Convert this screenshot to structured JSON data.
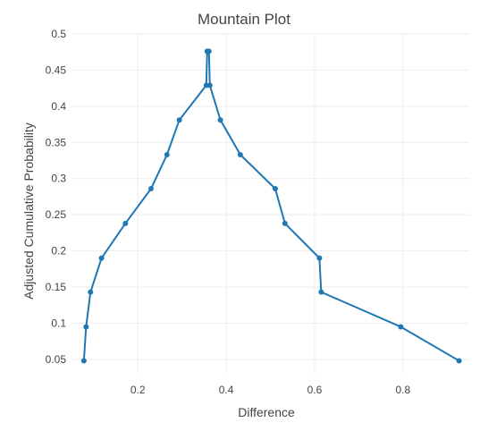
{
  "chart_data": {
    "type": "line",
    "title": "Mountain Plot",
    "xlabel": "Difference",
    "ylabel": "Adjusted Cumulative Probability",
    "xlim": [
      0.05,
      0.95
    ],
    "ylim": [
      0.03,
      0.5
    ],
    "x_ticks": [
      "0.2",
      "0.4",
      "0.6",
      "0.8"
    ],
    "x_tick_values": [
      0.2,
      0.4,
      0.6,
      0.8
    ],
    "y_ticks": [
      "0.05",
      "0.1",
      "0.15",
      "0.2",
      "0.25",
      "0.3",
      "0.35",
      "0.4",
      "0.45",
      "0.5"
    ],
    "y_tick_values": [
      0.05,
      0.1,
      0.15,
      0.2,
      0.25,
      0.3,
      0.35,
      0.4,
      0.45,
      0.5
    ],
    "grid": true,
    "legend": "none",
    "series_color": "#1f77b4",
    "series": [
      {
        "x": [
          0.078,
          0.083,
          0.093,
          0.118,
          0.172,
          0.23,
          0.266,
          0.294,
          0.355,
          0.357,
          0.358,
          0.36,
          0.361,
          0.363,
          0.387,
          0.432,
          0.511,
          0.533,
          0.611,
          0.615,
          0.795,
          0.927
        ],
        "y": [
          0.048,
          0.095,
          0.143,
          0.19,
          0.238,
          0.286,
          0.333,
          0.381,
          0.429,
          0.476,
          0.476,
          0.476,
          0.476,
          0.429,
          0.381,
          0.333,
          0.286,
          0.238,
          0.19,
          0.143,
          0.095,
          0.048
        ]
      }
    ]
  }
}
